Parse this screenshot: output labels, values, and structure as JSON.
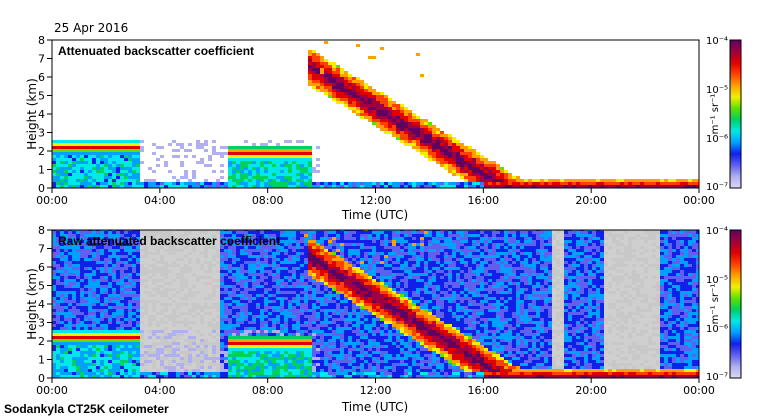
{
  "date": "25 Apr 2016",
  "station": "Sodankyla CT25K ceilometer",
  "colors": {
    "axis": "#000000",
    "colorbar": [
      "#d8d8f8",
      "#b0b0f0",
      "#6060f0",
      "#1020e8",
      "#00a0ff",
      "#00e8e8",
      "#00d060",
      "#60e000",
      "#f0f000",
      "#ffa000",
      "#ff4000",
      "#e00000",
      "#a00040",
      "#600060"
    ]
  },
  "chart_data": [
    {
      "type": "heatmap",
      "title": "Attenuated backscatter coefficient",
      "xlabel": "Time (UTC)",
      "ylabel": "Height (km)",
      "x_tick_labels": [
        "00:00",
        "04:00",
        "08:00",
        "12:00",
        "16:00",
        "20:00",
        "00:00"
      ],
      "x_ticks_hours": [
        0,
        4,
        8,
        12,
        16,
        20,
        24
      ],
      "xlim_hours": [
        0,
        24
      ],
      "y_ticks": [
        0,
        1,
        2,
        3,
        4,
        5,
        6,
        7,
        8
      ],
      "y_tick_labels": [
        "0",
        "1",
        "2",
        "3",
        "4",
        "5",
        "6",
        "7",
        "8"
      ],
      "ylim_km": [
        0,
        8
      ],
      "colorbar": {
        "scale": "log",
        "tick_labels": [
          "10⁻⁴",
          "10⁻⁵",
          "10⁻⁶",
          "10⁻⁷"
        ],
        "label": "m⁻¹ sr⁻¹"
      }
    },
    {
      "type": "heatmap",
      "title": "Raw attenuated backscatter coefficient",
      "xlabel": "Time (UTC)",
      "ylabel": "Height (km)",
      "x_tick_labels": [
        "00:00",
        "04:00",
        "08:00",
        "12:00",
        "16:00",
        "20:00",
        "00:00"
      ],
      "x_ticks_hours": [
        0,
        4,
        8,
        12,
        16,
        20,
        24
      ],
      "xlim_hours": [
        0,
        24
      ],
      "y_ticks": [
        0,
        1,
        2,
        3,
        4,
        5,
        6,
        7,
        8
      ],
      "y_tick_labels": [
        "0",
        "1",
        "2",
        "3",
        "4",
        "5",
        "6",
        "7",
        "8"
      ],
      "ylim_km": [
        0,
        8
      ],
      "colorbar": {
        "scale": "log",
        "tick_labels": [
          "10⁻⁴",
          "10⁻⁵",
          "10⁻⁶",
          "10⁻⁷"
        ],
        "label": "m⁻¹ sr⁻¹"
      }
    }
  ]
}
